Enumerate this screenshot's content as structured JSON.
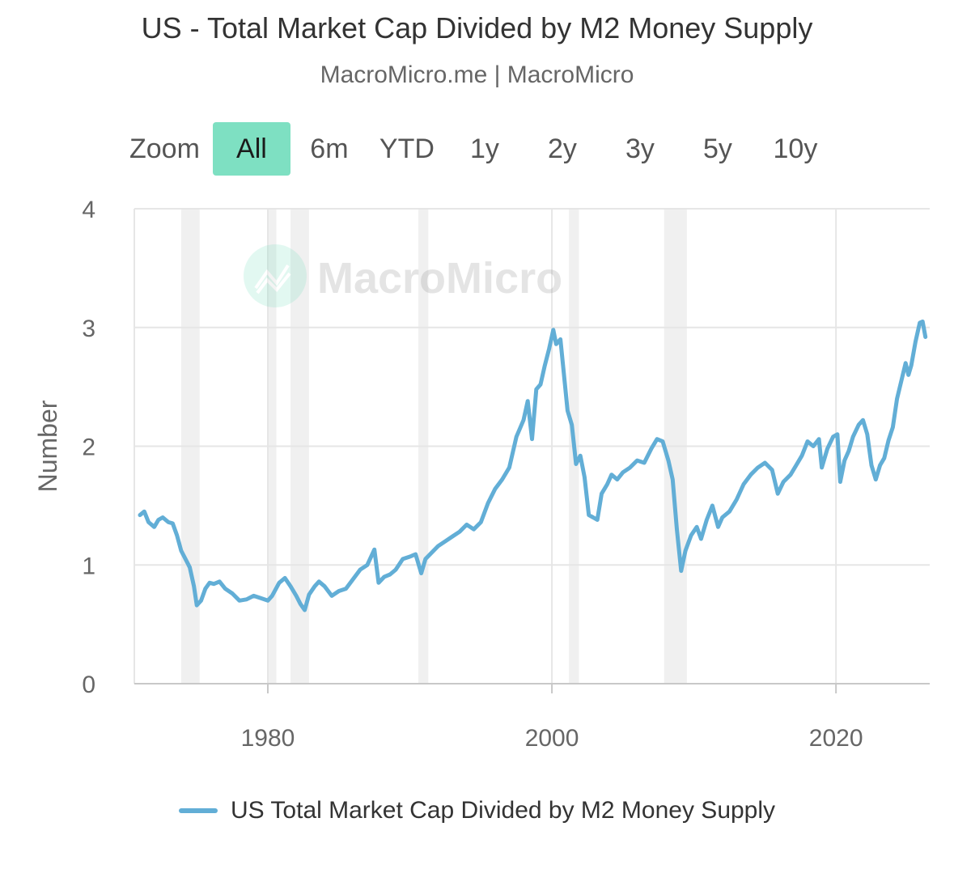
{
  "title": "US - Total Market Cap Divided by M2 Money Supply",
  "subtitle": "MacroMicro.me | MacroMicro",
  "watermark": "MacroMicro",
  "zoom": {
    "label": "Zoom",
    "buttons": [
      "All",
      "6m",
      "YTD",
      "1y",
      "2y",
      "3y",
      "5y",
      "10y"
    ],
    "active": "All"
  },
  "colors": {
    "line": "#62aed6",
    "zoom_active": "#7ee0c2",
    "recession": "#f0f0f0",
    "grid": "#e6e6e6"
  },
  "chart_data": {
    "type": "line",
    "title": "US - Total Market Cap Divided by M2 Money Supply",
    "ylabel": "Number",
    "xlabel": "",
    "ylim": [
      0,
      4
    ],
    "xlim": [
      1970.6,
      2026.6
    ],
    "yticks": [
      "0",
      "1",
      "2",
      "3",
      "4"
    ],
    "xticks": [
      "1980",
      "2000",
      "2020"
    ],
    "grid": true,
    "legend_position": "bottom-center",
    "recession_bands": [
      [
        1973.9,
        1975.2
      ],
      [
        1980.0,
        1980.6
      ],
      [
        1981.6,
        1982.9
      ],
      [
        1990.6,
        1991.3
      ],
      [
        2001.2,
        2001.9
      ],
      [
        2007.9,
        2009.5
      ]
    ],
    "series": [
      {
        "name": "US Total Market Cap Divided by M2 Money Supply",
        "points": [
          [
            1971.0,
            1.42
          ],
          [
            1971.3,
            1.45
          ],
          [
            1971.6,
            1.36
          ],
          [
            1972.0,
            1.32
          ],
          [
            1972.3,
            1.38
          ],
          [
            1972.6,
            1.4
          ],
          [
            1973.0,
            1.36
          ],
          [
            1973.3,
            1.35
          ],
          [
            1973.6,
            1.25
          ],
          [
            1973.9,
            1.12
          ],
          [
            1974.2,
            1.05
          ],
          [
            1974.5,
            0.98
          ],
          [
            1974.8,
            0.82
          ],
          [
            1975.0,
            0.66
          ],
          [
            1975.3,
            0.7
          ],
          [
            1975.6,
            0.8
          ],
          [
            1975.9,
            0.85
          ],
          [
            1976.2,
            0.84
          ],
          [
            1976.6,
            0.86
          ],
          [
            1977.0,
            0.8
          ],
          [
            1977.5,
            0.76
          ],
          [
            1978.0,
            0.7
          ],
          [
            1978.5,
            0.71
          ],
          [
            1979.0,
            0.74
          ],
          [
            1979.5,
            0.72
          ],
          [
            1980.0,
            0.7
          ],
          [
            1980.3,
            0.74
          ],
          [
            1980.8,
            0.85
          ],
          [
            1981.2,
            0.89
          ],
          [
            1981.6,
            0.82
          ],
          [
            1982.0,
            0.74
          ],
          [
            1982.3,
            0.67
          ],
          [
            1982.6,
            0.62
          ],
          [
            1982.9,
            0.75
          ],
          [
            1983.3,
            0.82
          ],
          [
            1983.6,
            0.86
          ],
          [
            1984.0,
            0.82
          ],
          [
            1984.5,
            0.74
          ],
          [
            1985.0,
            0.78
          ],
          [
            1985.5,
            0.8
          ],
          [
            1986.0,
            0.88
          ],
          [
            1986.5,
            0.96
          ],
          [
            1987.0,
            1.0
          ],
          [
            1987.5,
            1.13
          ],
          [
            1987.8,
            0.85
          ],
          [
            1988.2,
            0.9
          ],
          [
            1988.6,
            0.92
          ],
          [
            1989.0,
            0.96
          ],
          [
            1989.5,
            1.05
          ],
          [
            1990.0,
            1.07
          ],
          [
            1990.4,
            1.09
          ],
          [
            1990.8,
            0.93
          ],
          [
            1991.1,
            1.05
          ],
          [
            1991.5,
            1.1
          ],
          [
            1992.0,
            1.16
          ],
          [
            1992.5,
            1.2
          ],
          [
            1993.0,
            1.24
          ],
          [
            1993.5,
            1.28
          ],
          [
            1994.0,
            1.34
          ],
          [
            1994.5,
            1.3
          ],
          [
            1995.0,
            1.36
          ],
          [
            1995.5,
            1.52
          ],
          [
            1996.0,
            1.64
          ],
          [
            1996.5,
            1.72
          ],
          [
            1997.0,
            1.82
          ],
          [
            1997.5,
            2.08
          ],
          [
            1998.0,
            2.22
          ],
          [
            1998.3,
            2.38
          ],
          [
            1998.6,
            2.06
          ],
          [
            1998.9,
            2.48
          ],
          [
            1999.2,
            2.52
          ],
          [
            1999.5,
            2.68
          ],
          [
            1999.8,
            2.82
          ],
          [
            2000.1,
            2.98
          ],
          [
            2000.3,
            2.86
          ],
          [
            2000.6,
            2.9
          ],
          [
            2000.9,
            2.54
          ],
          [
            2001.1,
            2.3
          ],
          [
            2001.4,
            2.18
          ],
          [
            2001.7,
            1.85
          ],
          [
            2002.0,
            1.92
          ],
          [
            2002.3,
            1.74
          ],
          [
            2002.6,
            1.42
          ],
          [
            2002.9,
            1.4
          ],
          [
            2003.2,
            1.38
          ],
          [
            2003.5,
            1.6
          ],
          [
            2003.9,
            1.68
          ],
          [
            2004.2,
            1.76
          ],
          [
            2004.6,
            1.72
          ],
          [
            2005.0,
            1.78
          ],
          [
            2005.5,
            1.82
          ],
          [
            2006.0,
            1.88
          ],
          [
            2006.5,
            1.86
          ],
          [
            2007.0,
            1.98
          ],
          [
            2007.4,
            2.06
          ],
          [
            2007.8,
            2.04
          ],
          [
            2008.2,
            1.88
          ],
          [
            2008.5,
            1.72
          ],
          [
            2008.8,
            1.3
          ],
          [
            2009.1,
            0.95
          ],
          [
            2009.4,
            1.12
          ],
          [
            2009.8,
            1.25
          ],
          [
            2010.2,
            1.32
          ],
          [
            2010.5,
            1.22
          ],
          [
            2010.9,
            1.38
          ],
          [
            2011.3,
            1.5
          ],
          [
            2011.7,
            1.32
          ],
          [
            2012.0,
            1.4
          ],
          [
            2012.5,
            1.45
          ],
          [
            2013.0,
            1.55
          ],
          [
            2013.5,
            1.68
          ],
          [
            2014.0,
            1.76
          ],
          [
            2014.5,
            1.82
          ],
          [
            2015.0,
            1.86
          ],
          [
            2015.5,
            1.8
          ],
          [
            2015.9,
            1.6
          ],
          [
            2016.3,
            1.7
          ],
          [
            2016.8,
            1.76
          ],
          [
            2017.2,
            1.84
          ],
          [
            2017.6,
            1.92
          ],
          [
            2018.0,
            2.04
          ],
          [
            2018.4,
            2.0
          ],
          [
            2018.8,
            2.06
          ],
          [
            2019.0,
            1.82
          ],
          [
            2019.4,
            1.98
          ],
          [
            2019.8,
            2.08
          ],
          [
            2020.1,
            2.1
          ],
          [
            2020.3,
            1.7
          ],
          [
            2020.6,
            1.88
          ],
          [
            2020.9,
            1.96
          ],
          [
            2021.2,
            2.08
          ],
          [
            2021.6,
            2.18
          ],
          [
            2021.9,
            2.22
          ],
          [
            2022.2,
            2.1
          ],
          [
            2022.5,
            1.84
          ],
          [
            2022.8,
            1.72
          ],
          [
            2023.1,
            1.84
          ],
          [
            2023.4,
            1.9
          ],
          [
            2023.7,
            2.05
          ],
          [
            2024.0,
            2.16
          ],
          [
            2024.3,
            2.4
          ],
          [
            2024.6,
            2.55
          ],
          [
            2024.9,
            2.7
          ],
          [
            2025.1,
            2.6
          ],
          [
            2025.3,
            2.68
          ],
          [
            2025.6,
            2.88
          ],
          [
            2025.9,
            3.04
          ],
          [
            2026.1,
            3.05
          ],
          [
            2026.3,
            2.92
          ]
        ]
      }
    ]
  }
}
